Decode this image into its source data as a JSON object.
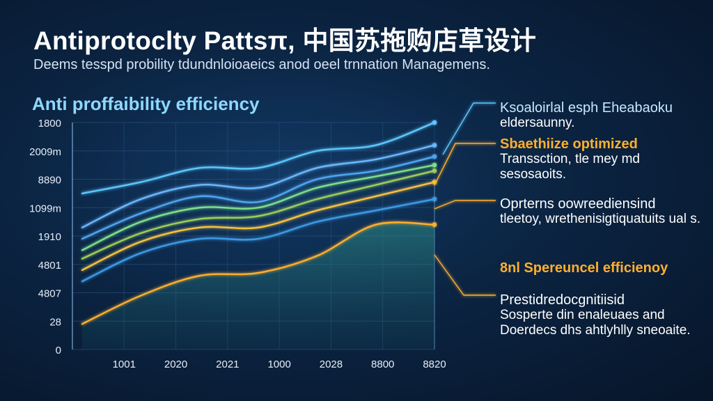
{
  "header": {
    "title": "Antiprotoclty Pattsπ, 中国苏拖购店草设计",
    "subtitle": "Deems tesspd probility tdundnloioaeics anod oeel trnnation Managemens."
  },
  "chart_data": {
    "type": "line",
    "title": "Anti proffaibility efficiency",
    "y_tick_labels": [
      "0",
      "28",
      "4807",
      "4801",
      "1910",
      "1099m",
      "8890",
      "2009m",
      "1800"
    ],
    "x_tick_labels": [
      "1001",
      "2020",
      "2021",
      "1000",
      "2028",
      "8800",
      "8820"
    ],
    "x": [
      0,
      1,
      2,
      3,
      4,
      5,
      6
    ],
    "ylim": [
      0,
      8
    ],
    "grid": true,
    "series": [
      {
        "color": "#5cc8ff",
        "values": [
          5.5,
          5.9,
          6.4,
          6.4,
          7.0,
          7.2,
          8.0
        ]
      },
      {
        "color": "#6ab8ff",
        "values": [
          4.3,
          5.3,
          5.8,
          5.7,
          6.4,
          6.7,
          7.2
        ]
      },
      {
        "color": "#4fa6f0",
        "values": [
          3.9,
          4.8,
          5.4,
          5.2,
          6.0,
          6.3,
          6.8
        ]
      },
      {
        "color": "#7ee08a",
        "values": [
          3.5,
          4.5,
          5.0,
          5.0,
          5.7,
          6.1,
          6.5
        ]
      },
      {
        "color": "#9ccf5a",
        "values": [
          3.2,
          4.1,
          4.6,
          4.7,
          5.3,
          5.8,
          6.3
        ]
      },
      {
        "color": "#f5c242",
        "values": [
          2.8,
          3.8,
          4.3,
          4.3,
          4.9,
          5.4,
          5.9
        ]
      },
      {
        "color": "#3d9be6",
        "values": [
          2.4,
          3.4,
          3.9,
          3.9,
          4.5,
          4.9,
          5.3
        ]
      },
      {
        "color": "#ffb02e",
        "values": [
          0.9,
          1.9,
          2.6,
          2.7,
          3.3,
          4.4,
          4.4
        ]
      }
    ]
  },
  "annotations": [
    {
      "heading": "Ksoaloirlal esph Eheabaoku",
      "body": "eldersaunny."
    },
    {
      "heading": "Sbaethiize optimized",
      "body": "Transsction, tle mey md sesosaoits."
    },
    {
      "heading": "Oprterns oowreediensind",
      "body": "tleetoy, wrethenisigtiquatuits ual s."
    },
    {
      "heading": "8nl Spereuncel efficienoy",
      "body": ""
    },
    {
      "heading": "Prestidredocgnitiisid",
      "body": "Sosperte din enaleuaes and Doerdecs dhs ahtlyhlly sneoaite."
    }
  ],
  "colors": {
    "background": "#0b2442",
    "accent_blue": "#8fd8ff",
    "accent_orange": "#ffb02e"
  }
}
